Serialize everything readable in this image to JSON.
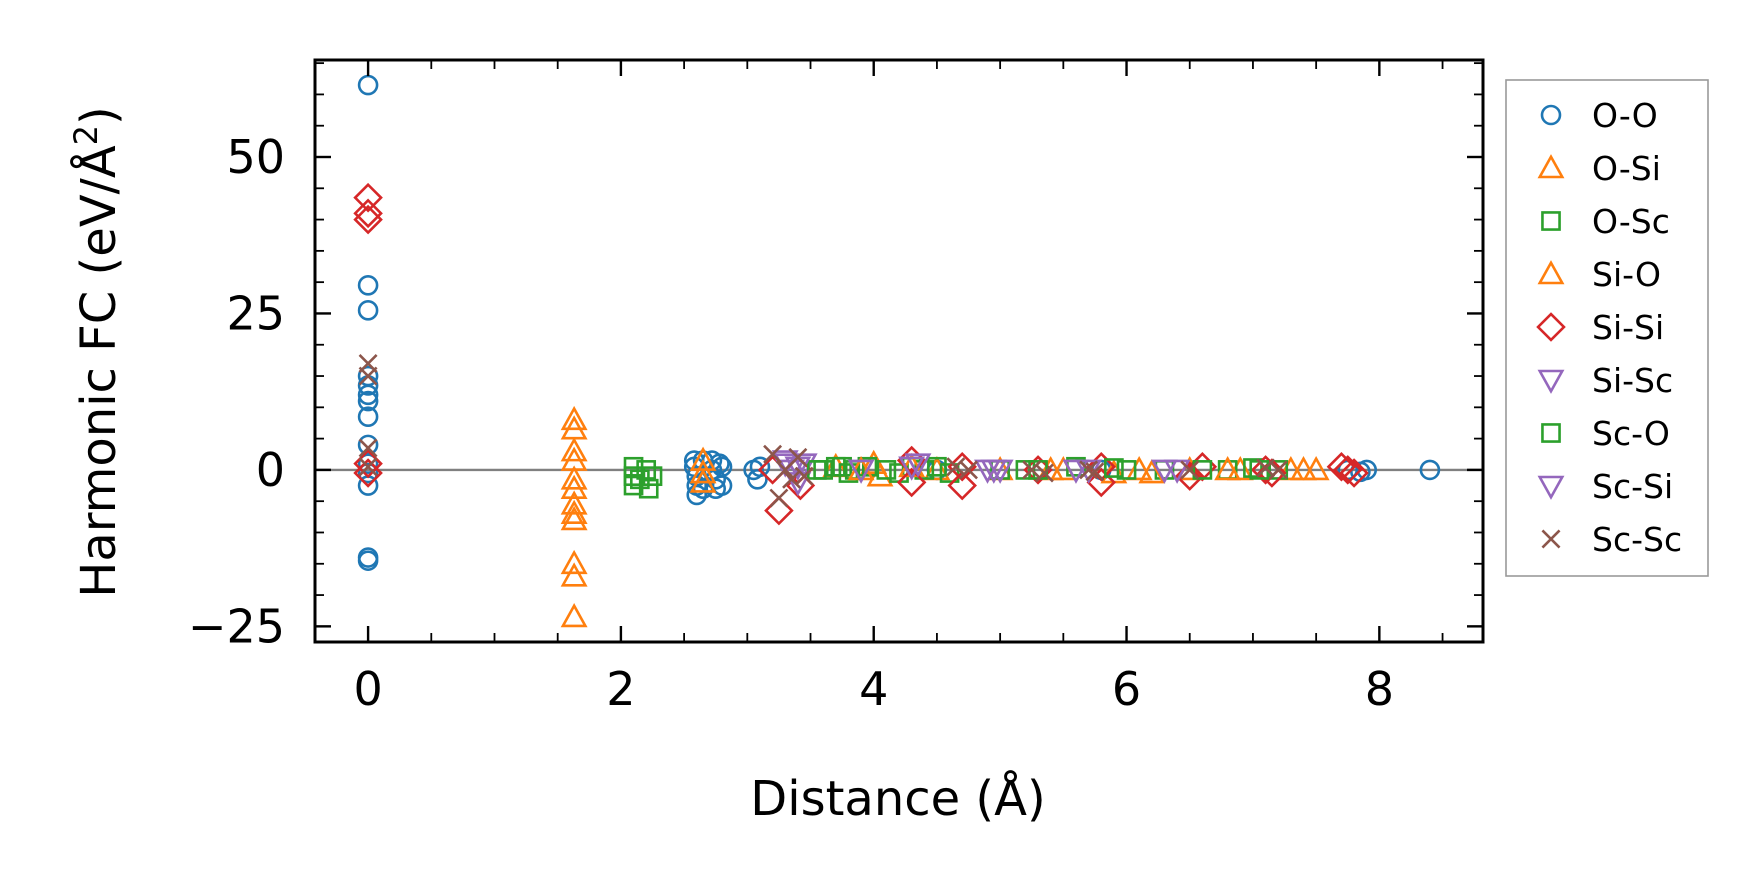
{
  "chart_data": {
    "type": "scatter",
    "xlabel": "Distance (Å)",
    "ylabel_main": "Harmonic FC (eV/Å",
    "ylabel_sup": "2",
    "ylabel_close": ")",
    "xlim": [
      -0.42,
      8.82
    ],
    "ylim": [
      -27.5,
      65.5
    ],
    "x_ticks": [
      0,
      2,
      4,
      6,
      8
    ],
    "x_tick_labels": [
      "0",
      "2",
      "4",
      "6",
      "8"
    ],
    "y_ticks": [
      -25,
      0,
      25,
      50
    ],
    "y_tick_labels": [
      "−25",
      "0",
      "25",
      "50"
    ],
    "x_minor_step": 0.5,
    "y_minor_step": 5,
    "zero_line": true,
    "grid": false,
    "legend_position": "outside-right",
    "series": [
      {
        "name": "O-O",
        "marker": "circle",
        "color": "#1f77b4",
        "points": [
          [
            0,
            61.5
          ],
          [
            0,
            29.5
          ],
          [
            0,
            25.5
          ],
          [
            0,
            15
          ],
          [
            0,
            13.5
          ],
          [
            0,
            12
          ],
          [
            0,
            11
          ],
          [
            0,
            8.5
          ],
          [
            0,
            4
          ],
          [
            0,
            1
          ],
          [
            0,
            -0.5
          ],
          [
            0,
            -2.5
          ],
          [
            0,
            -14
          ],
          [
            0,
            -14.5
          ],
          [
            2.58,
            1.5
          ],
          [
            2.58,
            0.5
          ],
          [
            2.6,
            -1
          ],
          [
            2.6,
            -2.5
          ],
          [
            2.6,
            -4
          ],
          [
            2.65,
            1.5
          ],
          [
            2.65,
            -3
          ],
          [
            2.72,
            1.5
          ],
          [
            2.72,
            0
          ],
          [
            2.75,
            -1.5
          ],
          [
            2.75,
            -3
          ],
          [
            2.78,
            1
          ],
          [
            2.8,
            -2.5
          ],
          [
            2.8,
            0.5
          ],
          [
            3.05,
            0
          ],
          [
            3.08,
            -1.5
          ],
          [
            3.1,
            0.5
          ],
          [
            4.5,
            0
          ],
          [
            5.8,
            0
          ],
          [
            7.75,
            0
          ],
          [
            7.85,
            -0.3
          ],
          [
            7.9,
            0
          ],
          [
            8.4,
            0
          ]
        ]
      },
      {
        "name": "O-Si",
        "marker": "triangle-up",
        "color": "#ff7f0e",
        "points": [
          [
            1.63,
            8
          ],
          [
            1.63,
            6.5
          ],
          [
            1.63,
            3
          ],
          [
            1.63,
            1.5
          ],
          [
            1.63,
            -1.5
          ],
          [
            1.63,
            -3
          ],
          [
            1.63,
            -5.5
          ],
          [
            1.63,
            -7
          ],
          [
            1.63,
            -8
          ],
          [
            1.63,
            -15
          ],
          [
            1.63,
            -17
          ],
          [
            1.63,
            -23.5
          ],
          [
            2.65,
            1.5
          ],
          [
            2.65,
            -0.5
          ],
          [
            2.65,
            -2
          ],
          [
            3.7,
            0.5
          ],
          [
            4.0,
            1
          ],
          [
            4.05,
            -1
          ],
          [
            4.5,
            0
          ],
          [
            5.0,
            0
          ],
          [
            5.4,
            0
          ],
          [
            5.9,
            -0.5
          ],
          [
            6.1,
            0
          ],
          [
            6.5,
            0
          ],
          [
            6.9,
            0
          ],
          [
            7.3,
            0
          ],
          [
            7.5,
            0
          ]
        ]
      },
      {
        "name": "O-Sc",
        "marker": "square",
        "color": "#2ca02c",
        "points": [
          [
            2.1,
            0.5
          ],
          [
            2.1,
            -1
          ],
          [
            2.1,
            -2.5
          ],
          [
            2.15,
            -1.5
          ],
          [
            2.2,
            0
          ],
          [
            2.22,
            -3
          ],
          [
            2.25,
            -1
          ],
          [
            3.6,
            0
          ],
          [
            3.75,
            0.5
          ],
          [
            3.8,
            -0.5
          ],
          [
            3.85,
            0
          ],
          [
            3.95,
            0.5
          ],
          [
            4.2,
            -0.5
          ],
          [
            4.3,
            0.5
          ],
          [
            4.4,
            0
          ],
          [
            4.6,
            -0.5
          ],
          [
            5.0,
            0
          ],
          [
            5.2,
            0
          ],
          [
            5.6,
            0.5
          ],
          [
            6.0,
            0
          ],
          [
            6.3,
            0
          ],
          [
            6.8,
            0
          ],
          [
            7.0,
            0.3
          ],
          [
            7.2,
            0
          ]
        ]
      },
      {
        "name": "Si-O",
        "marker": "triangle-up",
        "color": "#ff7f0e",
        "points": [
          [
            3.9,
            0
          ],
          [
            4.3,
            0.5
          ],
          [
            5.5,
            0
          ],
          [
            6.2,
            -0.5
          ],
          [
            6.8,
            0
          ],
          [
            7.4,
            0
          ]
        ]
      },
      {
        "name": "Si-Si",
        "marker": "diamond",
        "color": "#d62728",
        "points": [
          [
            0,
            43.5
          ],
          [
            0,
            41
          ],
          [
            0,
            40
          ],
          [
            0,
            1
          ],
          [
            0,
            -0.5
          ],
          [
            3.25,
            -6.5
          ],
          [
            3.2,
            0
          ],
          [
            3.4,
            0
          ],
          [
            3.42,
            -2.5
          ],
          [
            4.3,
            1.5
          ],
          [
            4.3,
            -2
          ],
          [
            4.7,
            0.5
          ],
          [
            4.7,
            -2.5
          ],
          [
            5.3,
            0
          ],
          [
            5.8,
            -2
          ],
          [
            5.8,
            0.5
          ],
          [
            6.5,
            -1
          ],
          [
            6.6,
            0.5
          ],
          [
            7.1,
            0
          ],
          [
            7.15,
            -0.5
          ],
          [
            7.7,
            0.5
          ],
          [
            7.75,
            0
          ],
          [
            7.8,
            -0.5
          ]
        ]
      },
      {
        "name": "Si-Sc",
        "marker": "triangle-down",
        "color": "#9467bd",
        "points": [
          [
            3.3,
            1.5
          ],
          [
            3.35,
            0
          ],
          [
            3.4,
            -2
          ],
          [
            3.45,
            1
          ],
          [
            3.9,
            0
          ],
          [
            4.3,
            0.5
          ],
          [
            4.9,
            0
          ],
          [
            5.0,
            0
          ],
          [
            5.6,
            0
          ],
          [
            6.3,
            0
          ]
        ]
      },
      {
        "name": "Sc-O",
        "marker": "square",
        "color": "#2ca02c",
        "points": [
          [
            3.55,
            0
          ],
          [
            3.7,
            0.5
          ],
          [
            4.1,
            0
          ],
          [
            4.5,
            0.5
          ],
          [
            5.3,
            0
          ],
          [
            5.9,
            0.3
          ],
          [
            6.6,
            0
          ],
          [
            7.05,
            0
          ]
        ]
      },
      {
        "name": "Sc-Si",
        "marker": "triangle-down",
        "color": "#9467bd",
        "points": [
          [
            3.3,
            1
          ],
          [
            3.4,
            0.5
          ],
          [
            4.35,
            1
          ],
          [
            4.95,
            0
          ],
          [
            5.7,
            0
          ],
          [
            6.4,
            0
          ]
        ]
      },
      {
        "name": "Sc-Sc",
        "marker": "x",
        "color": "#8c564b",
        "points": [
          [
            0,
            17
          ],
          [
            0,
            15
          ],
          [
            0,
            3.5
          ],
          [
            0,
            0.5
          ],
          [
            3.2,
            2.5
          ],
          [
            3.25,
            -4.5
          ],
          [
            3.3,
            0
          ],
          [
            3.35,
            -1.5
          ],
          [
            3.4,
            2
          ],
          [
            3.45,
            -1
          ],
          [
            4.65,
            0.5
          ],
          [
            4.75,
            0
          ],
          [
            5.25,
            0
          ],
          [
            5.35,
            -0.5
          ],
          [
            5.7,
            0
          ],
          [
            5.75,
            -0.3
          ],
          [
            6.5,
            0
          ],
          [
            7.1,
            0.3
          ],
          [
            7.2,
            0
          ]
        ]
      }
    ]
  }
}
